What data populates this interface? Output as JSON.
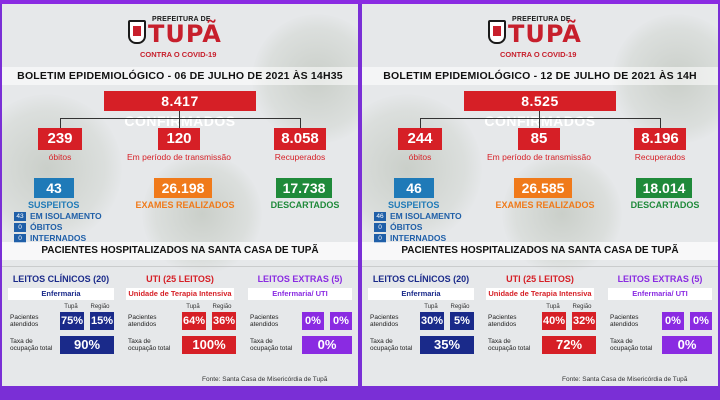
{
  "panels": [
    {
      "logo_small": "PREFEITURA DE",
      "logo_big": "TUPÃ",
      "logo_sub": "CONTRA O COVID-19",
      "boletim": "BOLETIM EPIDEMIOLÓGICO - 06 DE JULHO DE 2021 ÀS 14H35",
      "confirmados": "8.417  CONFIRMADOS",
      "obitos": "239",
      "obitos_label": "óbitos",
      "transmissao": "120",
      "transmissao_label": "Em período de transmissão",
      "recuperados": "8.058",
      "recuperados_label": "Recuperados",
      "suspeitos": "43",
      "suspeitos_label": "SUSPEITOS",
      "exames": "26.198",
      "exames_label": "EXAMES REALIZADOS",
      "descartados": "17.738",
      "descartados_label": "DESCARTADOS",
      "isolamento": "43",
      "isolamento_label": "EM ISOLAMENTO",
      "obitos_s": "0",
      "obitos_s_label": "ÓBITOS",
      "internados": "0",
      "internados_label": "INTERNADOS",
      "hosp_title": "PACIENTES HOSPITALIZADOS NA SANTA CASA DE TUPÃ",
      "clinicos_title": "LEITOS CLÍNICOS (20)",
      "clinicos_sub": "Enfermaria",
      "uti_title": "UTI (25 LEITOS)",
      "uti_sub": "Unidade de Terapia Intensiva",
      "extras_title": "LEITOS EXTRAS (5)",
      "extras_sub": "Enfermaria/ UTI",
      "tupa_label": "Tupã",
      "regiao_label": "Região",
      "pac_label": "Pacientes atendidos",
      "taxa_label": "Taxa de ocupação total",
      "clinicos_tupa": "75%",
      "clinicos_regiao": "15%",
      "clinicos_total": "90%",
      "uti_tupa": "64%",
      "uti_regiao": "36%",
      "uti_total": "100%",
      "extras_tupa": "0%",
      "extras_regiao": "0%",
      "extras_total": "0%",
      "fonte": "Fonte: Santa Casa de Misericórdia de Tupã"
    },
    {
      "logo_small": "PREFEITURA DE",
      "logo_big": "TUPÃ",
      "logo_sub": "CONTRA O COVID-19",
      "boletim": "BOLETIM EPIDEMIOLÓGICO - 12 DE JULHO DE 2021 ÀS 14H",
      "confirmados": "8.525  CONFIRMADOS",
      "obitos": "244",
      "obitos_label": "óbitos",
      "transmissao": "85",
      "transmissao_label": "Em período de transmissão",
      "recuperados": "8.196",
      "recuperados_label": "Recuperados",
      "suspeitos": "46",
      "suspeitos_label": "SUSPEITOS",
      "exames": "26.585",
      "exames_label": "EXAMES REALIZADOS",
      "descartados": "18.014",
      "descartados_label": "DESCARTADOS",
      "isolamento": "46",
      "isolamento_label": "EM ISOLAMENTO",
      "obitos_s": "0",
      "obitos_s_label": "ÓBITOS",
      "internados": "0",
      "internados_label": "INTERNADOS",
      "hosp_title": "PACIENTES HOSPITALIZADOS NA SANTA CASA DE TUPÃ",
      "clinicos_title": "LEITOS CLÍNICOS (20)",
      "clinicos_sub": "Enfermaria",
      "uti_title": "UTI (25 LEITOS)",
      "uti_sub": "Unidade de Terapia Intensiva",
      "extras_title": "LEITOS EXTRAS (5)",
      "extras_sub": "Enfermaria/ UTI",
      "tupa_label": "Tupã",
      "regiao_label": "Região",
      "pac_label": "Pacientes atendidos",
      "taxa_label": "Taxa de ocupação total",
      "clinicos_tupa": "30%",
      "clinicos_regiao": "5%",
      "clinicos_total": "35%",
      "uti_tupa": "40%",
      "uti_regiao": "32%",
      "uti_total": "72%",
      "extras_tupa": "0%",
      "extras_regiao": "0%",
      "extras_total": "0%",
      "fonte": "Fonte: Santa Casa de Misericórdia de Tupã"
    }
  ]
}
